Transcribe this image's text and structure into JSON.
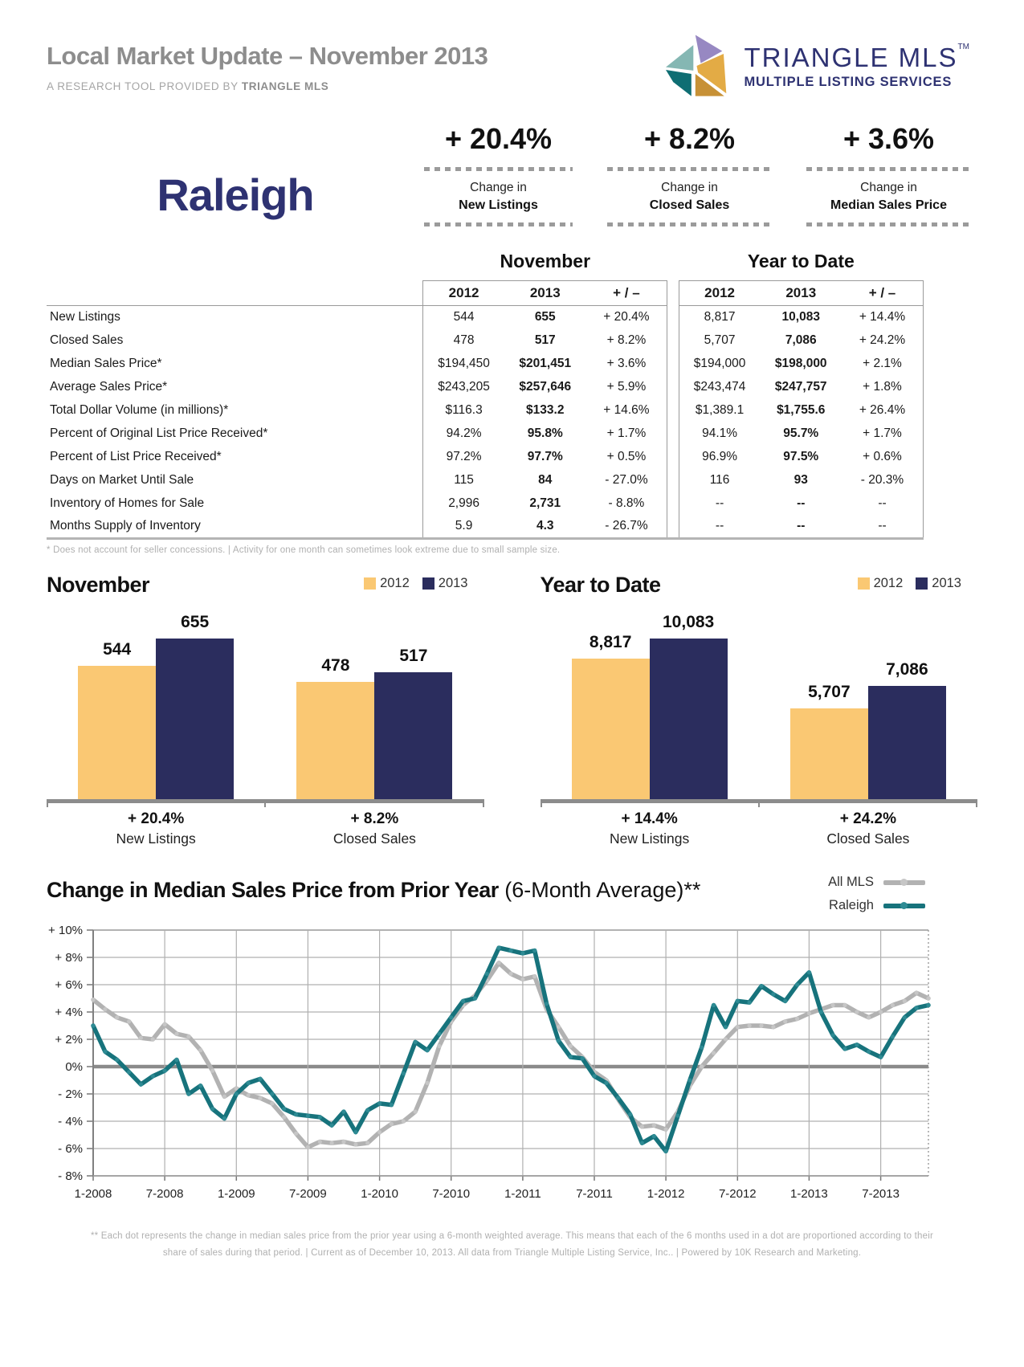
{
  "header": {
    "title": "Local Market Update – November 2013",
    "subtitle_prefix": "A RESEARCH TOOL PROVIDED BY ",
    "subtitle_brand": "TRIANGLE MLS",
    "logo": {
      "name": "TRIANGLE MLS",
      "tm": "TM",
      "tagline": "MULTIPLE LISTING SERVICES"
    }
  },
  "market_name": "Raleigh",
  "stats": [
    {
      "value": "+ 20.4%",
      "line1": "Change in",
      "line2": "New Listings"
    },
    {
      "value": "+ 8.2%",
      "line1": "Change in",
      "line2": "Closed Sales"
    },
    {
      "value": "+ 3.6%",
      "line1": "Change in",
      "line2": "Median Sales Price"
    }
  ],
  "table": {
    "group_headers": [
      "November",
      "Year to Date"
    ],
    "col_headers": [
      "2012",
      "2013",
      "+ / –"
    ],
    "rows": [
      {
        "label": "New Listings",
        "nov": [
          "544",
          "655",
          "+ 20.4%"
        ],
        "ytd": [
          "8,817",
          "10,083",
          "+ 14.4%"
        ]
      },
      {
        "label": "Closed Sales",
        "nov": [
          "478",
          "517",
          "+ 8.2%"
        ],
        "ytd": [
          "5,707",
          "7,086",
          "+ 24.2%"
        ]
      },
      {
        "label": "Median Sales Price*",
        "nov": [
          "$194,450",
          "$201,451",
          "+ 3.6%"
        ],
        "ytd": [
          "$194,000",
          "$198,000",
          "+ 2.1%"
        ]
      },
      {
        "label": "Average Sales Price*",
        "nov": [
          "$243,205",
          "$257,646",
          "+ 5.9%"
        ],
        "ytd": [
          "$243,474",
          "$247,757",
          "+ 1.8%"
        ]
      },
      {
        "label": "Total Dollar Volume (in millions)*",
        "nov": [
          "$116.3",
          "$133.2",
          "+ 14.6%"
        ],
        "ytd": [
          "$1,389.1",
          "$1,755.6",
          "+ 26.4%"
        ]
      },
      {
        "label": "Percent of Original List Price Received*",
        "nov": [
          "94.2%",
          "95.8%",
          "+ 1.7%"
        ],
        "ytd": [
          "94.1%",
          "95.7%",
          "+ 1.7%"
        ]
      },
      {
        "label": "Percent of List Price Received*",
        "nov": [
          "97.2%",
          "97.7%",
          "+ 0.5%"
        ],
        "ytd": [
          "96.9%",
          "97.5%",
          "+ 0.6%"
        ]
      },
      {
        "label": "Days on Market Until Sale",
        "nov": [
          "115",
          "84",
          "- 27.0%"
        ],
        "ytd": [
          "116",
          "93",
          "- 20.3%"
        ]
      },
      {
        "label": "Inventory of Homes for Sale",
        "nov": [
          "2,996",
          "2,731",
          "- 8.8%"
        ],
        "ytd": [
          "--",
          "--",
          "--"
        ]
      },
      {
        "label": "Months Supply of Inventory",
        "nov": [
          "5.9",
          "4.3",
          "- 26.7%"
        ],
        "ytd": [
          "--",
          "--",
          "--"
        ]
      }
    ]
  },
  "table_footnote": "* Does not account for seller concessions.  |  Activity for one month can sometimes look extreme due to small sample size.",
  "chart_data": [
    {
      "type": "bar",
      "title": "November",
      "legend": [
        "2012",
        "2013"
      ],
      "groups": [
        {
          "label": "New Listings",
          "change": "+ 20.4%",
          "values": [
            544,
            655
          ],
          "values_display": [
            "544",
            "655"
          ]
        },
        {
          "label": "Closed Sales",
          "change": "+ 8.2%",
          "values": [
            478,
            517
          ],
          "values_display": [
            "478",
            "517"
          ]
        }
      ]
    },
    {
      "type": "bar",
      "title": "Year to Date",
      "legend": [
        "2012",
        "2013"
      ],
      "groups": [
        {
          "label": "New Listings",
          "change": "+ 14.4%",
          "values": [
            8817,
            10083
          ],
          "values_display": [
            "8,817",
            "10,083"
          ]
        },
        {
          "label": "Closed Sales",
          "change": "+ 24.2%",
          "values": [
            5707,
            7086
          ],
          "values_display": [
            "5,707",
            "7,086"
          ]
        }
      ]
    },
    {
      "type": "line",
      "title": "Change in Median Sales Price from Prior Year",
      "title_suffix": " (6-Month Average)**",
      "x_tick_labels": [
        "1-2008",
        "7-2008",
        "1-2009",
        "7-2009",
        "1-2010",
        "7-2010",
        "1-2011",
        "7-2011",
        "1-2012",
        "7-2012",
        "1-2013",
        "7-2013"
      ],
      "x_tick_months": [
        0,
        6,
        12,
        18,
        24,
        30,
        36,
        42,
        48,
        54,
        60,
        66
      ],
      "months_total": 71,
      "ylim": [
        -8,
        10
      ],
      "ytick_step": 2,
      "ytick_labels": [
        "+ 10%",
        "+ 8%",
        "+ 6%",
        "+ 4%",
        "+ 2%",
        "0%",
        "- 2%",
        "- 4%",
        "- 6%",
        "- 8%"
      ],
      "series": [
        {
          "name": "All MLS",
          "color": "#b2b2b2",
          "dot_color": "#c6c6c6",
          "values": [
            4.9,
            4.2,
            3.6,
            3.3,
            2.1,
            2.0,
            3.1,
            2.4,
            2.2,
            1.2,
            -0.3,
            -2.2,
            -1.6,
            -2.1,
            -2.3,
            -2.7,
            -3.7,
            -4.9,
            -5.9,
            -5.5,
            -5.6,
            -5.5,
            -5.7,
            -5.6,
            -4.8,
            -4.2,
            -4.0,
            -3.3,
            -1.2,
            1.5,
            3.3,
            4.5,
            5.2,
            6.3,
            7.6,
            6.8,
            6.4,
            6.6,
            4.2,
            2.9,
            1.5,
            0.7,
            -0.4,
            -1.0,
            -2.4,
            -3.7,
            -4.4,
            -4.3,
            -4.6,
            -3.3,
            -1.4,
            0.0,
            1.0,
            2.0,
            2.9,
            3.0,
            3.0,
            2.9,
            3.3,
            3.5,
            3.9,
            4.2,
            4.5,
            4.5,
            4.0,
            3.6,
            4.0,
            4.5,
            4.8,
            5.4,
            5.0
          ]
        },
        {
          "name": "Raleigh",
          "color": "#17737c",
          "dot_color": "#2e8b94",
          "values": [
            3.0,
            1.1,
            0.5,
            -0.4,
            -1.3,
            -0.7,
            -0.3,
            0.5,
            -2.0,
            -1.4,
            -3.1,
            -3.8,
            -2.0,
            -1.2,
            -0.9,
            -2.0,
            -3.1,
            -3.5,
            -3.6,
            -3.7,
            -4.3,
            -3.3,
            -4.8,
            -3.2,
            -2.7,
            -2.8,
            -0.5,
            1.8,
            1.2,
            2.4,
            3.6,
            4.8,
            5.0,
            6.8,
            8.7,
            8.5,
            8.3,
            8.5,
            4.6,
            1.9,
            0.7,
            0.6,
            -0.7,
            -1.2,
            -2.3,
            -3.5,
            -5.6,
            -5.1,
            -6.2,
            -3.6,
            -1.0,
            1.4,
            4.5,
            2.9,
            4.8,
            4.7,
            5.9,
            5.3,
            4.8,
            6.0,
            6.9,
            4.0,
            2.3,
            1.3,
            1.6,
            1.1,
            0.7,
            2.2,
            3.6,
            4.3,
            4.5
          ]
        }
      ]
    }
  ],
  "colors": {
    "bar_2012": "#fac873",
    "bar_2013": "#2b2d5e",
    "navy": "#2e3272",
    "title_gray": "#8d8d8d",
    "all_mls_line": "#b2b2b2",
    "raleigh_line": "#17737c"
  },
  "footer_note_line1": "** Each dot represents the change in median sales price from the prior year using a 6-month weighted average. This means that each of the 6 months used in a dot are proportioned according to their",
  "footer_note_line2": "share of sales during that period.  |  Current as of December 10, 2013. All data from Triangle Multiple Listing Service, Inc..  |  Powered by 10K Research and Marketing."
}
